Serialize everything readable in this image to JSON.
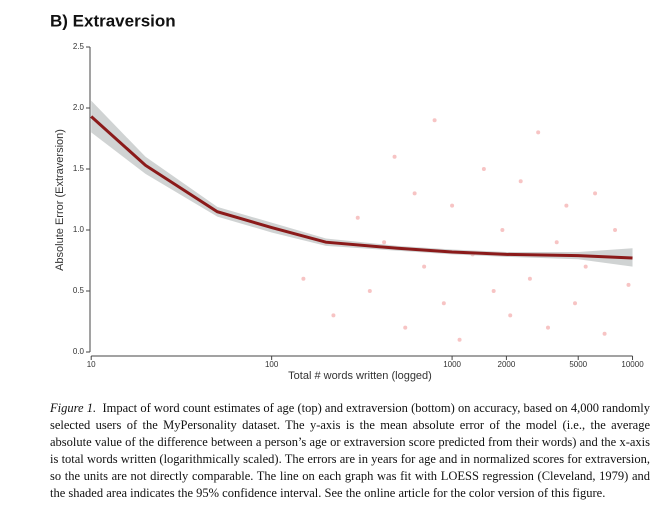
{
  "chart_data": {
    "type": "line",
    "title": "B) Extraversion",
    "x_label": "Total # words written (logged)",
    "y_label": "Absolute Error (Extraversion)",
    "x": [
      10,
      20,
      50,
      100,
      200,
      500,
      1000,
      2000,
      5000,
      10000
    ],
    "values": [
      1.93,
      1.53,
      1.15,
      1.02,
      0.9,
      0.85,
      0.82,
      0.8,
      0.79,
      0.77
    ],
    "ci_lower": [
      1.8,
      1.46,
      1.11,
      0.98,
      0.87,
      0.83,
      0.8,
      0.78,
      0.76,
      0.7
    ],
    "ci_upper": [
      2.06,
      1.6,
      1.19,
      1.06,
      0.93,
      0.87,
      0.84,
      0.82,
      0.82,
      0.85
    ],
    "color": "#8b1a1a",
    "band_color": "#c4c8c8",
    "scatter_x": [
      150,
      220,
      300,
      350,
      420,
      480,
      550,
      620,
      700,
      800,
      900,
      1000,
      1100,
      1300,
      1500,
      1700,
      1900,
      2100,
      2400,
      2700,
      3000,
      3400,
      3800,
      4300,
      4800,
      5500,
      6200,
      7000,
      8000,
      9500
    ],
    "scatter_y": [
      0.6,
      0.3,
      1.1,
      0.5,
      0.9,
      1.6,
      0.2,
      1.3,
      0.7,
      1.9,
      0.4,
      1.2,
      0.1,
      0.8,
      1.5,
      0.5,
      1.0,
      0.3,
      1.4,
      0.6,
      1.8,
      0.2,
      0.9,
      1.2,
      0.4,
      0.7,
      1.3,
      0.15,
      1.0,
      0.55
    ],
    "scatter_color": "#f08a8a",
    "x_log": true,
    "xlim": [
      9.6,
      11000
    ],
    "ylim": [
      0,
      2.5
    ],
    "xticks": [
      10,
      100,
      1000,
      2000,
      5000,
      10000
    ],
    "yticks": [
      {
        "value": 0,
        "label": "0.0"
      },
      0.5,
      {
        "value": 1,
        "label": "1.0"
      },
      1.5,
      {
        "value": 2,
        "label": "2.0"
      },
      2.5
    ]
  },
  "caption": {
    "label": "Figure 1.",
    "text": "Impact of word count estimates of age (top) and extraversion (bottom) on accuracy, based on 4,000 randomly selected users of the MyPersonality dataset. The y-axis is the mean absolute error of the model (i.e., the average absolute value of the difference between a person’s age or extraversion score predicted from their words) and the x-axis is total words written (logarithmically scaled). The errors are in years for age and in normalized scores for extraversion, so the units are not directly comparable. The line on each graph was fit with LOESS regression (Cleveland, 1979) and the shaded area indicates the 95% confidence interval. See the online article for the color version of this figure."
  }
}
